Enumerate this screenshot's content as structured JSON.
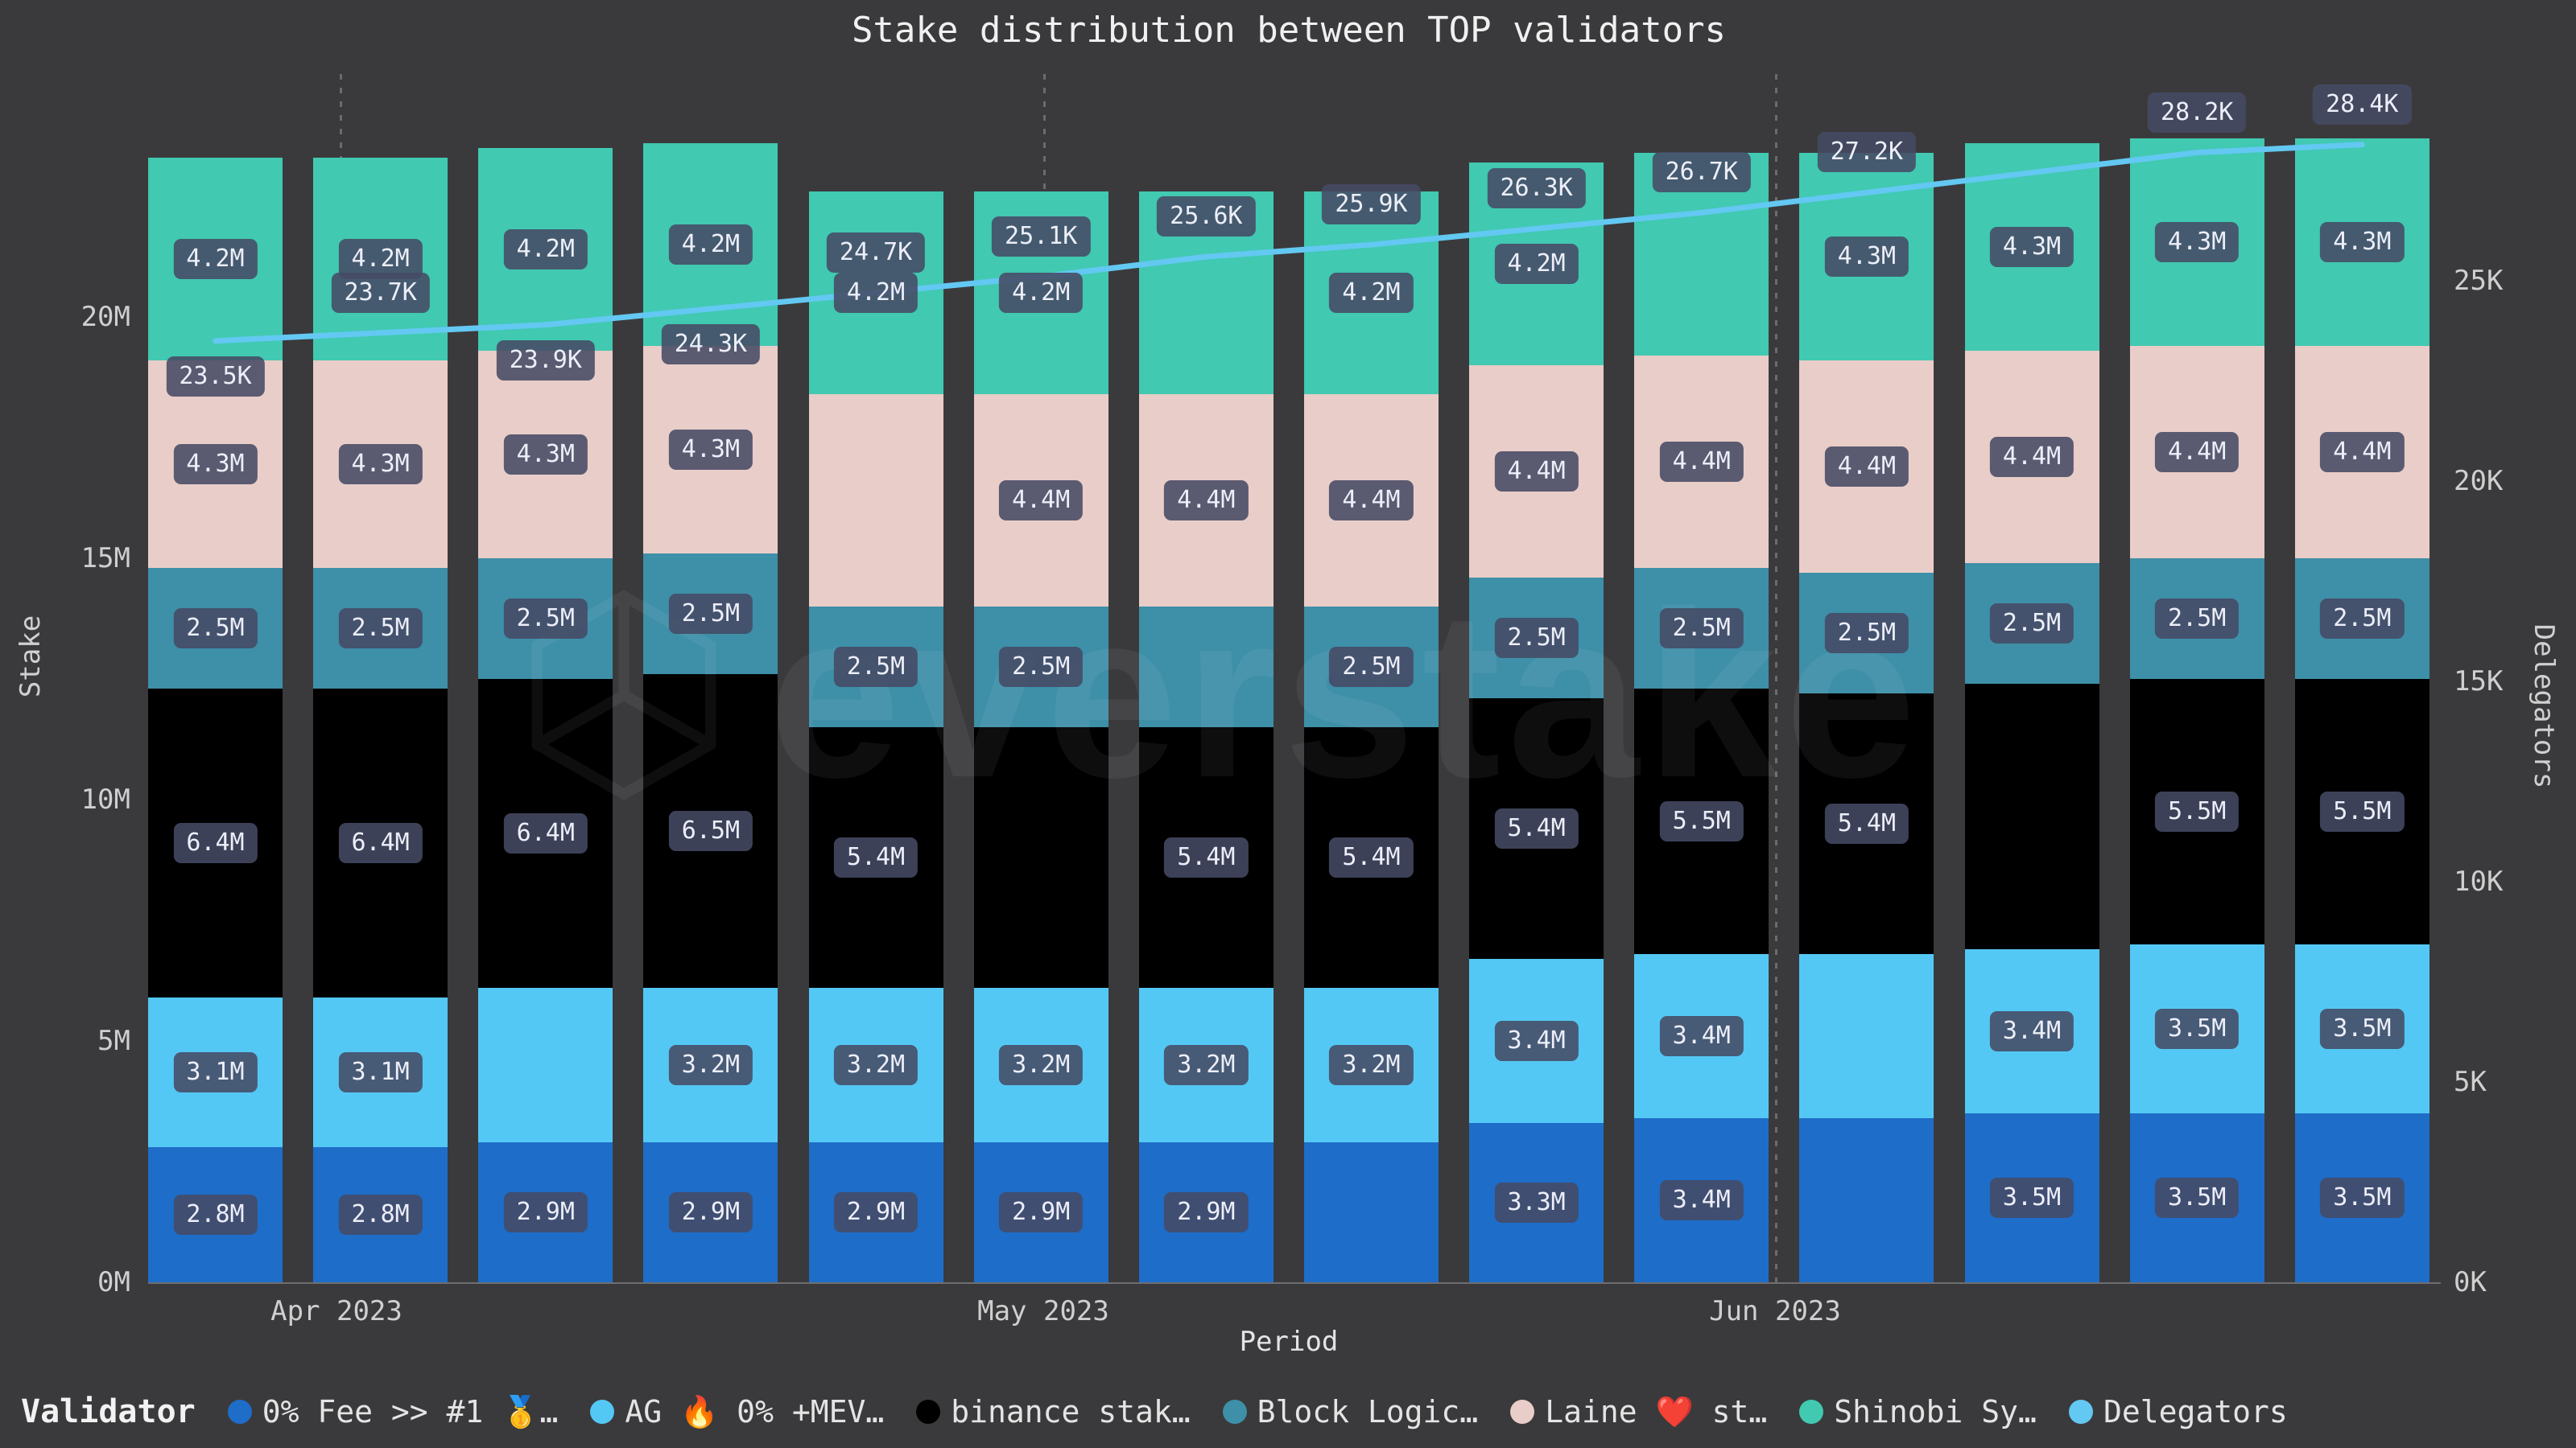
{
  "title": "Stake distribution between TOP validators",
  "watermark": "everstake",
  "legend_title": "Validator",
  "chart_data": {
    "type": "bar",
    "subtype": "stacked-bar-with-line",
    "bar_count": 14,
    "title": "Stake distribution between TOP validators",
    "xlabel": "Period",
    "x_tick_labels": [
      "Apr 2023",
      "May 2023",
      "Jun 2023"
    ],
    "ylabel_left": "Stake",
    "y_left_ticks": [
      "0M",
      "5M",
      "10M",
      "15M",
      "20M"
    ],
    "y_left_range_m": [
      0,
      25
    ],
    "ylabel_right": "Delegators",
    "y_right_ticks": [
      "0K",
      "5K",
      "10K",
      "15K",
      "20K",
      "25K"
    ],
    "y_right_range_k": [
      0,
      30
    ],
    "grid": "dotted-vertical-month-lines",
    "legend_position": "bottom",
    "series": [
      {
        "key": "fee0",
        "name": "0% Fee >> #1 🥇…",
        "type": "bar",
        "color": "#1e6dc8",
        "unit": "M",
        "values": [
          2.8,
          2.8,
          2.9,
          2.9,
          2.9,
          2.9,
          2.9,
          2.9,
          3.3,
          3.4,
          3.4,
          3.5,
          3.5,
          3.5
        ],
        "labels": [
          "2.8M",
          "2.8M",
          "2.9M",
          "2.9M",
          "2.9M",
          "2.9M",
          "2.9M",
          null,
          "3.3M",
          "3.4M",
          null,
          "3.5M",
          "3.5M",
          "3.5M"
        ]
      },
      {
        "key": "ag",
        "name": "AG 🔥 0% +MEV…",
        "type": "bar",
        "color": "#54c8f5",
        "unit": "M",
        "values": [
          3.1,
          3.1,
          3.2,
          3.2,
          3.2,
          3.2,
          3.2,
          3.2,
          3.4,
          3.4,
          3.4,
          3.4,
          3.5,
          3.5
        ],
        "labels": [
          "3.1M",
          "3.1M",
          null,
          "3.2M",
          "3.2M",
          "3.2M",
          "3.2M",
          "3.2M",
          "3.4M",
          "3.4M",
          null,
          "3.4M",
          "3.5M",
          "3.5M"
        ]
      },
      {
        "key": "binance",
        "name": "binance stak…",
        "type": "bar",
        "color": "#000000",
        "unit": "M",
        "values": [
          6.4,
          6.4,
          6.4,
          6.5,
          5.4,
          5.4,
          5.4,
          5.4,
          5.4,
          5.5,
          5.4,
          5.5,
          5.5,
          5.5
        ],
        "labels": [
          "6.4M",
          "6.4M",
          "6.4M",
          "6.5M",
          "5.4M",
          null,
          "5.4M",
          "5.4M",
          "5.4M",
          "5.5M",
          "5.4M",
          null,
          "5.5M",
          "5.5M"
        ]
      },
      {
        "key": "blocklogic",
        "name": "Block Logic…",
        "type": "bar",
        "color": "#3e8fa8",
        "unit": "M",
        "values": [
          2.5,
          2.5,
          2.5,
          2.5,
          2.5,
          2.5,
          2.5,
          2.5,
          2.5,
          2.5,
          2.5,
          2.5,
          2.5,
          2.5
        ],
        "labels": [
          "2.5M",
          "2.5M",
          "2.5M",
          "2.5M",
          "2.5M",
          "2.5M",
          null,
          "2.5M",
          "2.5M",
          "2.5M",
          "2.5M",
          "2.5M",
          "2.5M",
          "2.5M"
        ]
      },
      {
        "key": "laine",
        "name": "Laine ❤️ st…",
        "type": "bar",
        "color": "#e9cdc8",
        "unit": "M",
        "values": [
          4.3,
          4.3,
          4.3,
          4.3,
          4.4,
          4.4,
          4.4,
          4.4,
          4.4,
          4.4,
          4.4,
          4.4,
          4.4,
          4.4
        ],
        "labels": [
          "4.3M",
          "4.3M",
          "4.3M",
          "4.3M",
          null,
          "4.4M",
          "4.4M",
          "4.4M",
          "4.4M",
          "4.4M",
          "4.4M",
          "4.4M",
          "4.4M",
          "4.4M"
        ]
      },
      {
        "key": "shinobi",
        "name": "Shinobi Sy…",
        "type": "bar",
        "color": "#41c9b1",
        "unit": "M",
        "values": [
          4.2,
          4.2,
          4.2,
          4.2,
          4.2,
          4.2,
          4.2,
          4.2,
          4.2,
          4.2,
          4.3,
          4.3,
          4.3,
          4.3
        ],
        "labels": [
          "4.2M",
          "4.2M",
          "4.2M",
          "4.2M",
          "4.2M",
          "4.2M",
          null,
          "4.2M",
          "4.2M",
          null,
          "4.3M",
          "4.3M",
          "4.3M",
          "4.3M"
        ]
      },
      {
        "key": "delegators",
        "name": "Delegators",
        "type": "line",
        "color": "#63c8f2",
        "unit": "K",
        "values": [
          23.5,
          23.7,
          23.9,
          24.3,
          24.7,
          25.1,
          25.6,
          25.9,
          26.3,
          26.7,
          27.2,
          27.7,
          28.2,
          28.4
        ],
        "labels": [
          "23.5K",
          "23.7K",
          "23.9K",
          "24.3K",
          "24.7K",
          "25.1K",
          "25.6K",
          "25.9K",
          "26.3K",
          "26.7K",
          "27.2K",
          null,
          "28.2K",
          "28.4K"
        ],
        "label_side": [
          "below",
          "above",
          "below",
          "below",
          "above",
          "above",
          "above",
          "above",
          "above",
          "above",
          "above",
          "above",
          "above",
          "above"
        ]
      }
    ]
  }
}
